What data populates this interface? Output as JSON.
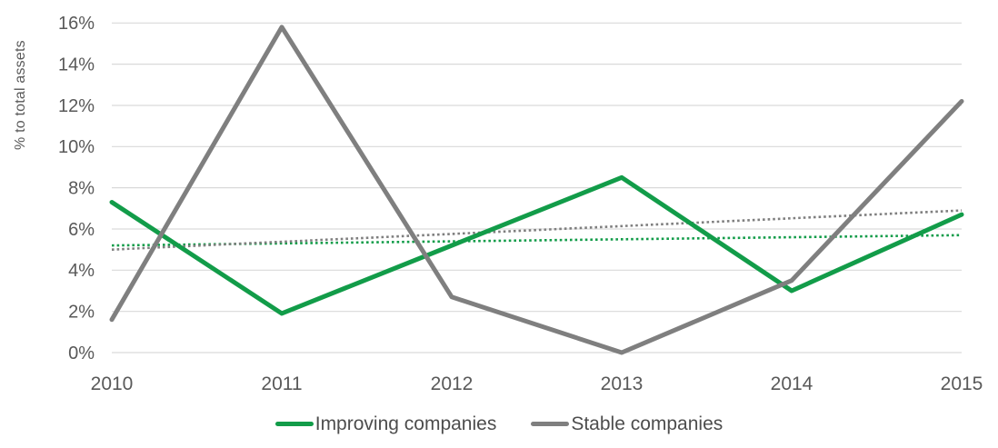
{
  "chart_data": {
    "type": "line",
    "title": "",
    "xlabel": "",
    "ylabel": "% to total assets",
    "ylim": [
      0,
      16
    ],
    "y_tick_step": 2,
    "y_tick_labels": [
      "0%",
      "2%",
      "4%",
      "6%",
      "8%",
      "10%",
      "12%",
      "14%",
      "16%"
    ],
    "categories": [
      "2010",
      "2011",
      "2012",
      "2013",
      "2014",
      "2015"
    ],
    "grid": "horizontal",
    "legend_position": "bottom",
    "colors": {
      "improving_green": "#129C49",
      "stable_gray": "#7F7F7F",
      "gridline": "#D9D9D9",
      "tick_text": "#595959",
      "legend_text": "#4D4D4D"
    },
    "series": [
      {
        "name": "Improving companies",
        "color": "#129C49",
        "style": "solid",
        "values": [
          7.3,
          1.9,
          5.2,
          8.5,
          3.0,
          6.7
        ]
      },
      {
        "name": "Stable companies",
        "color": "#7F7F7F",
        "style": "solid",
        "values": [
          1.6,
          15.8,
          2.7,
          0.0,
          3.5,
          12.2
        ]
      }
    ],
    "trendlines": [
      {
        "for": "Improving companies",
        "color": "#129C49",
        "style": "dotted",
        "start_value": 5.2,
        "end_value": 5.7
      },
      {
        "for": "Stable companies",
        "color": "#7F7F7F",
        "style": "dotted",
        "start_value": 5.0,
        "end_value": 6.9
      }
    ]
  }
}
